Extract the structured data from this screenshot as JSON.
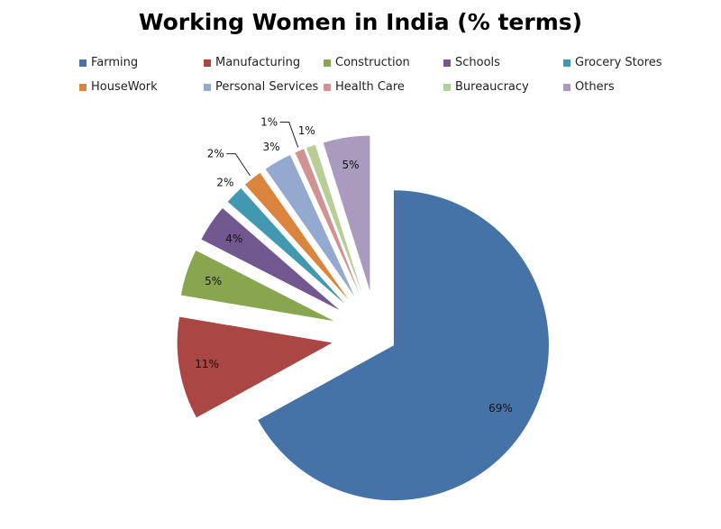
{
  "chart_data": {
    "type": "pie",
    "title": "Working Women in India (% terms)",
    "legend_position": "top",
    "exploded": true,
    "slices": [
      {
        "label": "Farming",
        "value": 69,
        "display": "69%",
        "color": "#4572A7"
      },
      {
        "label": "Manufacturing",
        "value": 11,
        "display": "11%",
        "color": "#AA4643"
      },
      {
        "label": "Construction",
        "value": 5,
        "display": "5%",
        "color": "#89A54E"
      },
      {
        "label": "Schools",
        "value": 4,
        "display": "4%",
        "color": "#71588F"
      },
      {
        "label": "Grocery Stores",
        "value": 2,
        "display": "2%",
        "color": "#4198AF"
      },
      {
        "label": "HouseWork",
        "value": 2,
        "display": "2%",
        "color": "#DB843D"
      },
      {
        "label": "Personal Services",
        "value": 3,
        "display": "3%",
        "color": "#93A9CF"
      },
      {
        "label": "Health Care",
        "value": 1,
        "display": "1%",
        "color": "#D19392"
      },
      {
        "label": "Bureaucracy",
        "value": 1,
        "display": "1%",
        "color": "#B9CD96"
      },
      {
        "label": "Others",
        "value": 5,
        "display": "5%",
        "color": "#A99BBD"
      }
    ]
  }
}
